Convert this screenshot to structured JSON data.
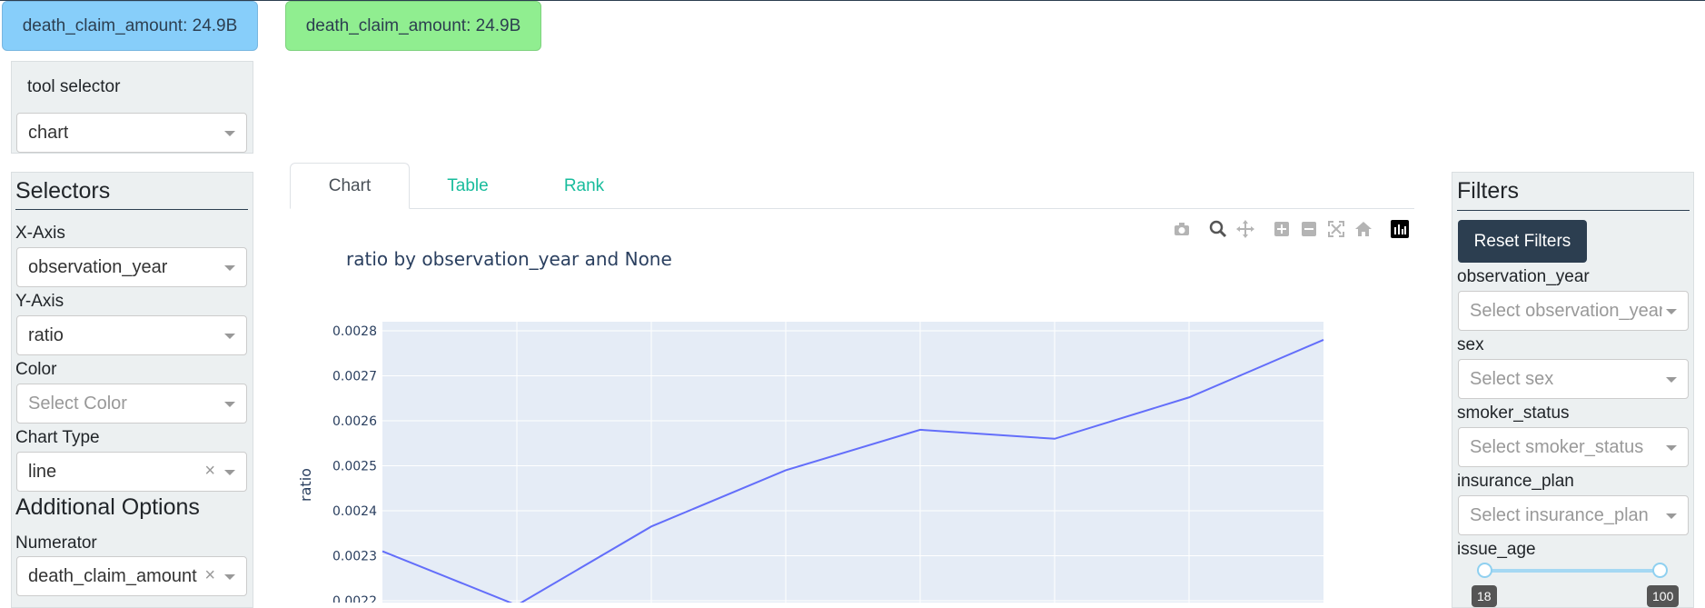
{
  "cards": [
    {
      "text": "death_claim_amount: 24.9B",
      "color": "#87cefa"
    },
    {
      "text": "death_claim_amount: 24.9B",
      "color": "#90ee90"
    }
  ],
  "tool_selector": {
    "label": "tool selector",
    "value": "chart"
  },
  "selectors": {
    "title": "Selectors",
    "x_axis": {
      "label": "X-Axis",
      "value": "observation_year"
    },
    "y_axis": {
      "label": "Y-Axis",
      "value": "ratio"
    },
    "color": {
      "label": "Color",
      "placeholder": "Select Color"
    },
    "chart_type": {
      "label": "Chart Type",
      "value": "line"
    },
    "additional_title": "Additional Options",
    "numerator": {
      "label": "Numerator",
      "value": "death_claim_amount"
    }
  },
  "tabs": [
    {
      "label": "Chart",
      "active": true
    },
    {
      "label": "Table",
      "active": false
    },
    {
      "label": "Rank",
      "active": false
    }
  ],
  "modebar_icons": [
    "camera-icon",
    "zoom-icon",
    "pan-icon",
    "zoom-in-icon",
    "zoom-out-icon",
    "autoscale-icon",
    "reset-axes-icon",
    "plotly-logo-icon"
  ],
  "filters": {
    "title": "Filters",
    "reset_label": "Reset Filters",
    "items": [
      {
        "label": "observation_year",
        "placeholder": "Select observation_year"
      },
      {
        "label": "sex",
        "placeholder": "Select sex"
      },
      {
        "label": "smoker_status",
        "placeholder": "Select smoker_status"
      },
      {
        "label": "insurance_plan",
        "placeholder": "Select insurance_plan"
      }
    ],
    "issue_age": {
      "label": "issue_age",
      "min": "18",
      "max": "100"
    }
  },
  "colors": {
    "accent": "#18bc9c",
    "dark": "#2c3e50",
    "line": "#636efa",
    "plot_bg": "#e5ecf6"
  },
  "chart_data": {
    "type": "line",
    "title": "ratio by observation_year and None",
    "ylabel": "ratio",
    "ylim": [
      0.0022,
      0.0028
    ],
    "yticks": [
      "0.0028",
      "0.0027",
      "0.0026",
      "0.0025",
      "0.0024",
      "0.0023",
      "0.0022"
    ],
    "series": [
      {
        "values": [
          0.00231,
          0.00219,
          0.002365,
          0.00249,
          0.00258,
          0.00256,
          0.002652,
          0.00278
        ]
      }
    ]
  }
}
